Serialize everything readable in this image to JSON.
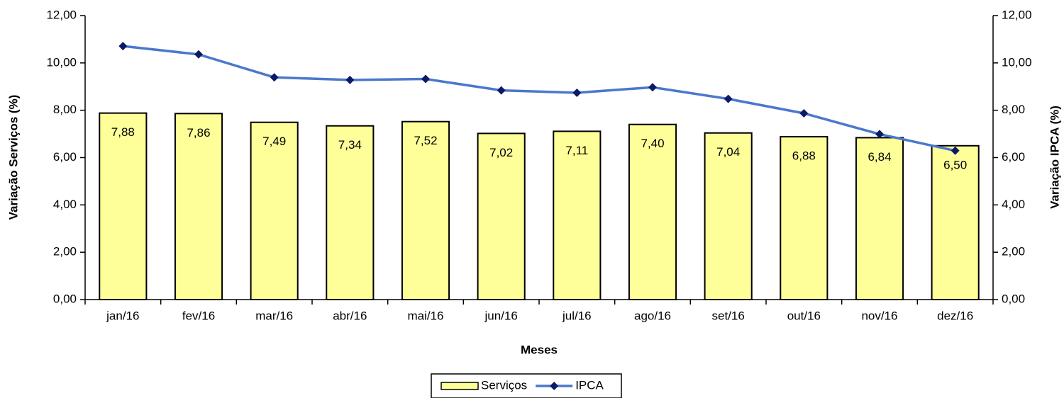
{
  "chart_data": {
    "type": "bar_line",
    "x_label": "Meses",
    "y_label": "Variação Serviços (%)",
    "y2_label": "Variação IPCA (%)",
    "categories": [
      "jan/16",
      "fev/16",
      "mar/16",
      "abr/16",
      "mai/16",
      "jun/16",
      "jul/16",
      "ago/16",
      "set/16",
      "out/16",
      "nov/16",
      "dez/16"
    ],
    "series": [
      {
        "name": "Serviços",
        "type": "bar",
        "color": "#ffff99",
        "edge_color": "#000000",
        "values": [
          7.88,
          7.86,
          7.49,
          7.34,
          7.52,
          7.02,
          7.11,
          7.4,
          7.04,
          6.88,
          6.84,
          6.5
        ],
        "value_labels": [
          "7,88",
          "7,86",
          "7,49",
          "7,34",
          "7,52",
          "7,02",
          "7,11",
          "7,40",
          "7,04",
          "6,88",
          "6,84",
          "6,50"
        ]
      },
      {
        "name": "IPCA",
        "type": "line",
        "axis": "y2",
        "color": "#4a78cc",
        "marker_color": "#0c1a66",
        "values": [
          10.71,
          10.36,
          9.39,
          9.28,
          9.32,
          8.84,
          8.74,
          8.97,
          8.48,
          7.87,
          6.99,
          6.29
        ]
      }
    ],
    "ylim": [
      0,
      12
    ],
    "yticks": [
      {
        "value": 0,
        "label": "0,00"
      },
      {
        "value": 2,
        "label": "2,00"
      },
      {
        "value": 4,
        "label": "4,00"
      },
      {
        "value": 6,
        "label": "6,00"
      },
      {
        "value": 8,
        "label": "8,00"
      },
      {
        "value": 10,
        "label": "10,00"
      },
      {
        "value": 12,
        "label": "12,00"
      }
    ],
    "y2lim": [
      0,
      12
    ],
    "y2ticks": [
      {
        "value": 0,
        "label": "0,00"
      },
      {
        "value": 2,
        "label": "2,00"
      },
      {
        "value": 4,
        "label": "4,00"
      },
      {
        "value": 6,
        "label": "6,00"
      },
      {
        "value": 8,
        "label": "8,00"
      },
      {
        "value": 10,
        "label": "10,00"
      },
      {
        "value": 12,
        "label": "12,00"
      }
    ],
    "grid": false,
    "legend": "bottom"
  }
}
